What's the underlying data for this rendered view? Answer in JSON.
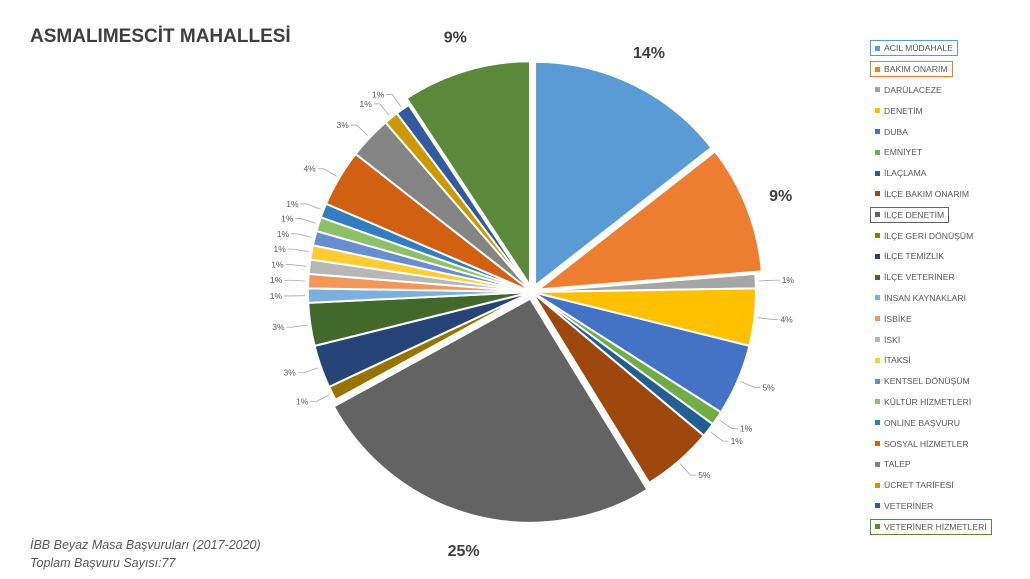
{
  "title": "ASMALIMESCİT MAHALLESİ",
  "footnote": {
    "line1": "İBB Beyaz Masa Başvuruları (2017-2020)",
    "line2": "Toplam Başvuru Sayısı:77"
  },
  "chart_data": {
    "type": "pie",
    "title": "ASMALIMESCİT MAHALLESİ",
    "legend_position": "right",
    "start_angle": "12 o'clock, clockwise",
    "slices": [
      {
        "label": "ACİL MÜDAHALE",
        "value": 14,
        "display": "14%",
        "color": "#5B9BD5",
        "highlight": true
      },
      {
        "label": "BAKIM ONARIM",
        "value": 9,
        "display": "9%",
        "color": "#ED7D31",
        "highlight": true
      },
      {
        "label": "DARÜLACEZE",
        "value": 1,
        "display": "1%",
        "color": "#A5A5A5"
      },
      {
        "label": "DENETİM",
        "value": 4,
        "display": "4%",
        "color": "#FFC000"
      },
      {
        "label": "DUBA",
        "value": 5,
        "display": "5%",
        "color": "#4472C4"
      },
      {
        "label": "EMNİYET",
        "value": 1,
        "display": "1%",
        "color": "#70AD47"
      },
      {
        "label": "İLAÇLAMA",
        "value": 1,
        "display": "1%",
        "color": "#255E91"
      },
      {
        "label": "İLÇE BAKIM ONARIM",
        "value": 5,
        "display": "5%",
        "color": "#9E480E"
      },
      {
        "label": "İLÇE DENETİM",
        "value": 25,
        "display": "25%",
        "color": "#636363",
        "highlight": true
      },
      {
        "label": "İLÇE GERİ DÖNÜŞÜM",
        "value": 1,
        "display": "1%",
        "color": "#997300"
      },
      {
        "label": "İLÇE TEMİZLİK",
        "value": 3,
        "display": "3%",
        "color": "#264478"
      },
      {
        "label": "İLÇE VETERİNER",
        "value": 3,
        "display": "3%",
        "color": "#43682B"
      },
      {
        "label": "İNSAN KAYNAKLARI",
        "value": 1,
        "display": "1%",
        "color": "#7CAFDD"
      },
      {
        "label": "İSBİKE",
        "value": 1,
        "display": "1%",
        "color": "#F1975A"
      },
      {
        "label": "İSKİ",
        "value": 1,
        "display": "1%",
        "color": "#B7B7B7"
      },
      {
        "label": "İTAKSİ",
        "value": 1,
        "display": "1%",
        "color": "#FFCD33"
      },
      {
        "label": "KENTSEL DÖNÜŞÜM",
        "value": 1,
        "display": "1%",
        "color": "#698ED0"
      },
      {
        "label": "KÜLTÜR HİZMETLERİ",
        "value": 1,
        "display": "1%",
        "color": "#8CC168"
      },
      {
        "label": "ONLİNE BAŞVURU",
        "value": 1,
        "display": "1%",
        "color": "#327DC2"
      },
      {
        "label": "SOSYAL HİZMETLER",
        "value": 4,
        "display": "4%",
        "color": "#D26012"
      },
      {
        "label": "TALEP",
        "value": 3,
        "display": "3%",
        "color": "#848484"
      },
      {
        "label": "ÜCRET TARİFESİ",
        "value": 1,
        "display": "1%",
        "color": "#CC9A00"
      },
      {
        "label": "VETERİNER",
        "value": 1,
        "display": "1%",
        "color": "#335AA1"
      },
      {
        "label": "VETERİNER HİZMETLERİ",
        "value": 9,
        "display": "9%",
        "color": "#5A8A39",
        "highlight": true
      }
    ]
  }
}
